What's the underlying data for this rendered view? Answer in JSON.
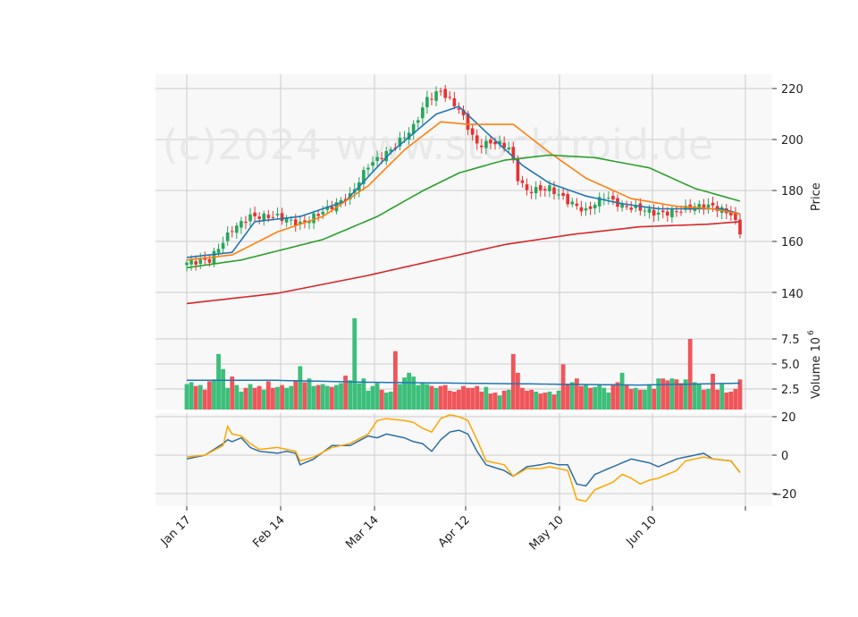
{
  "watermark": "(c)2024 www.stocktroid.de",
  "colors": {
    "up": "#26a65b",
    "down": "#e8312f",
    "up_vol": "#3cbf7a",
    "down_vol": "#f0555a",
    "ma_fast": "#1f77b4",
    "ma_mid": "#ff7f0e",
    "ma_slow": "#2ca02c",
    "ma_long": "#d62728",
    "vol_ma": "#1f77b4",
    "osc_a": "#2d6fa3",
    "osc_b": "#ffa500",
    "panel_bg": "#f8f8f8",
    "grid": "#cccccc"
  },
  "x_ticks": [
    "Jan 17",
    "Feb 14",
    "Mar 14",
    "Apr 12",
    "May 10",
    "Jun 10"
  ],
  "price_panel": {
    "ylabel": "Price",
    "yticks": [
      "220",
      "200",
      "180",
      "160",
      "140"
    ]
  },
  "volume_panel": {
    "ylabel": "Volume  10",
    "exponent": "6",
    "yticks": [
      "7.5",
      "5.0",
      "2.5"
    ]
  },
  "oscillator_panel": {
    "yticks": [
      "20",
      "0",
      "−20"
    ]
  },
  "chart_data": [
    {
      "type": "candlestick",
      "title": "",
      "xlabel": "",
      "ylabel": "Price",
      "ylim": [
        133,
        225
      ],
      "x_range": [
        "Jan 17",
        "Jun 28"
      ],
      "grid": true,
      "close_keypoints": [
        [
          0,
          152
        ],
        [
          5,
          153
        ],
        [
          10,
          165
        ],
        [
          14,
          170
        ],
        [
          20,
          170
        ],
        [
          25,
          167
        ],
        [
          30,
          172
        ],
        [
          36,
          178
        ],
        [
          40,
          190
        ],
        [
          45,
          196
        ],
        [
          50,
          205
        ],
        [
          53,
          216
        ],
        [
          56,
          219
        ],
        [
          60,
          212
        ],
        [
          64,
          198
        ],
        [
          68,
          199
        ],
        [
          71,
          197
        ],
        [
          73,
          185
        ],
        [
          75,
          180
        ],
        [
          80,
          181
        ],
        [
          84,
          176
        ],
        [
          88,
          172
        ],
        [
          92,
          178
        ],
        [
          96,
          174
        ],
        [
          100,
          173
        ],
        [
          104,
          171
        ],
        [
          108,
          172
        ],
        [
          112,
          174
        ],
        [
          116,
          174
        ],
        [
          120,
          171
        ],
        [
          122,
          164
        ]
      ],
      "moving_averages": [
        {
          "color": "ma_fast",
          "points": [
            [
              0,
              154
            ],
            [
              10,
              156
            ],
            [
              15,
              168
            ],
            [
              25,
              170
            ],
            [
              35,
              176
            ],
            [
              45,
              195
            ],
            [
              55,
              210
            ],
            [
              60,
              213
            ],
            [
              66,
              203
            ],
            [
              74,
              190
            ],
            [
              80,
              183
            ],
            [
              88,
              178
            ],
            [
              96,
              175
            ],
            [
              104,
              173
            ],
            [
              112,
              173
            ],
            [
              118,
              173
            ],
            [
              122,
              171
            ]
          ]
        },
        {
          "color": "ma_mid",
          "points": [
            [
              0,
              153
            ],
            [
              10,
              155
            ],
            [
              20,
              164
            ],
            [
              30,
              170
            ],
            [
              40,
              182
            ],
            [
              48,
              196
            ],
            [
              56,
              207
            ],
            [
              62,
              206
            ],
            [
              72,
              206
            ],
            [
              80,
              195
            ],
            [
              88,
              185
            ],
            [
              98,
              177
            ],
            [
              108,
              174
            ],
            [
              116,
              173
            ],
            [
              122,
              171
            ]
          ]
        },
        {
          "color": "ma_slow",
          "points": [
            [
              0,
              150
            ],
            [
              12,
              153
            ],
            [
              30,
              161
            ],
            [
              42,
              170
            ],
            [
              52,
              180
            ],
            [
              60,
              187
            ],
            [
              70,
              192
            ],
            [
              80,
              194
            ],
            [
              90,
              193
            ],
            [
              102,
              189
            ],
            [
              112,
              181
            ],
            [
              122,
              176
            ]
          ]
        },
        {
          "color": "ma_long",
          "points": [
            [
              0,
              136
            ],
            [
              20,
              140
            ],
            [
              40,
              147
            ],
            [
              55,
              153
            ],
            [
              70,
              159
            ],
            [
              85,
              163
            ],
            [
              100,
              166
            ],
            [
              115,
              167
            ],
            [
              122,
              168
            ]
          ]
        }
      ]
    },
    {
      "type": "bar",
      "title": "",
      "ylabel": "Volume  10^6",
      "ylim": [
        0,
        11
      ],
      "values": [
        2.7,
        2.9,
        2.5,
        2.6,
        2.1,
        3,
        3.2,
        5.9,
        4.3,
        2.3,
        3.5,
        2.6,
        1.9,
        2.3,
        2.7,
        2.3,
        2.5,
        2.1,
        3,
        2.3,
        2.4,
        2.6,
        2.3,
        2.5,
        3,
        4.6,
        2.9,
        3.3,
        2.5,
        2.6,
        2.7,
        2.5,
        2.4,
        2.6,
        2.8,
        3.6,
        3.1,
        9.7,
        2.8,
        3.3,
        2,
        2.5,
        2.8,
        2.1,
        1.8,
        1.9,
        6.2,
        2.7,
        3.4,
        3.9,
        3.5,
        2.6,
        2.9,
        2.7,
        2.5,
        2.3,
        2.5,
        2.6,
        2,
        1.9,
        2.1,
        2.5,
        2.3,
        2.3,
        2.5,
        1.9,
        2.4,
        1.7,
        1.8,
        1.5,
        2,
        2.1,
        5.9,
        3.9,
        2.3,
        2,
        2.1,
        1.9,
        1.7,
        1.8,
        1.9,
        1.6,
        2,
        4.8,
        2.7,
        2.9,
        3.3,
        2.5,
        2.7,
        2.3,
        2.4,
        2.6,
        2.3,
        1.8,
        2.6,
        2.9,
        3.9,
        2.6,
        2.2,
        2.3,
        2.1,
        2.1,
        2.6,
        2.2,
        3.3,
        3.3,
        3.1,
        3.3,
        3.2,
        2.8,
        3.2,
        7.5,
        2.9,
        2.7,
        2.1,
        2.2,
        3.8,
        2.1,
        2.7,
        1.8,
        1.9,
        2.2,
        3.2
      ],
      "volume_ma": [
        [
          0,
          3.1
        ],
        [
          20,
          3.1
        ],
        [
          40,
          2.9
        ],
        [
          60,
          2.8
        ],
        [
          80,
          2.7
        ],
        [
          100,
          2.6
        ],
        [
          122,
          2.8
        ]
      ]
    },
    {
      "type": "line",
      "title": "",
      "ylim": [
        -26,
        21
      ],
      "series": [
        {
          "color": "osc_a",
          "points": [
            [
              0,
              -2
            ],
            [
              4,
              0
            ],
            [
              8,
              6
            ],
            [
              9,
              8
            ],
            [
              10,
              7
            ],
            [
              12,
              9
            ],
            [
              14,
              4
            ],
            [
              16,
              2
            ],
            [
              20,
              1
            ],
            [
              22,
              2
            ],
            [
              24,
              1
            ],
            [
              25,
              -5
            ],
            [
              28,
              -2
            ],
            [
              32,
              5
            ],
            [
              36,
              5
            ],
            [
              40,
              10
            ],
            [
              42,
              9
            ],
            [
              44,
              11
            ],
            [
              48,
              9
            ],
            [
              50,
              7
            ],
            [
              52,
              6
            ],
            [
              54,
              2
            ],
            [
              56,
              8
            ],
            [
              58,
              12
            ],
            [
              60,
              13
            ],
            [
              62,
              11
            ],
            [
              64,
              2
            ],
            [
              66,
              -5
            ],
            [
              70,
              -8
            ],
            [
              72,
              -11
            ],
            [
              75,
              -6
            ],
            [
              78,
              -5
            ],
            [
              80,
              -4
            ],
            [
              82,
              -5
            ],
            [
              84,
              -5
            ],
            [
              86,
              -15
            ],
            [
              88,
              -16
            ],
            [
              90,
              -10
            ],
            [
              94,
              -6
            ],
            [
              96,
              -4
            ],
            [
              98,
              -2
            ],
            [
              100,
              -3
            ],
            [
              102,
              -4
            ],
            [
              104,
              -6
            ],
            [
              108,
              -2
            ],
            [
              110,
              -1
            ],
            [
              114,
              1
            ],
            [
              116,
              -2
            ],
            [
              120,
              -3
            ],
            [
              122,
              -9
            ]
          ]
        },
        {
          "color": "osc_b",
          "points": [
            [
              0,
              -1
            ],
            [
              4,
              0
            ],
            [
              8,
              5
            ],
            [
              9,
              15
            ],
            [
              10,
              11
            ],
            [
              12,
              10
            ],
            [
              14,
              6
            ],
            [
              16,
              3
            ],
            [
              20,
              4
            ],
            [
              22,
              3
            ],
            [
              24,
              2
            ],
            [
              25,
              -3
            ],
            [
              28,
              -1
            ],
            [
              32,
              4
            ],
            [
              36,
              6
            ],
            [
              40,
              11
            ],
            [
              42,
              18
            ],
            [
              44,
              19
            ],
            [
              48,
              18
            ],
            [
              50,
              17
            ],
            [
              52,
              14
            ],
            [
              54,
              12
            ],
            [
              56,
              19
            ],
            [
              58,
              21
            ],
            [
              60,
              20
            ],
            [
              62,
              18
            ],
            [
              64,
              8
            ],
            [
              66,
              -3
            ],
            [
              70,
              -5
            ],
            [
              72,
              -11
            ],
            [
              75,
              -7
            ],
            [
              78,
              -7
            ],
            [
              80,
              -6
            ],
            [
              82,
              -7
            ],
            [
              84,
              -8
            ],
            [
              86,
              -23
            ],
            [
              88,
              -24
            ],
            [
              90,
              -18
            ],
            [
              94,
              -14
            ],
            [
              96,
              -10
            ],
            [
              98,
              -12
            ],
            [
              100,
              -15
            ],
            [
              102,
              -13
            ],
            [
              104,
              -12
            ],
            [
              108,
              -8
            ],
            [
              110,
              -3
            ],
            [
              114,
              -1
            ],
            [
              116,
              -2
            ],
            [
              120,
              -3
            ],
            [
              122,
              -9
            ]
          ]
        }
      ]
    }
  ]
}
